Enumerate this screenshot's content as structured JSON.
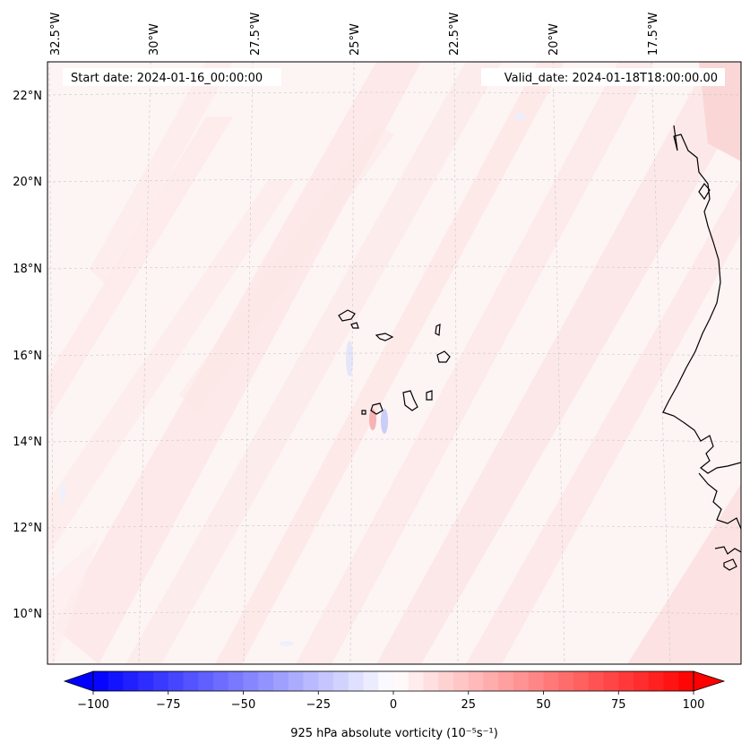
{
  "map": {
    "start_date": "Start date: 2024-01-16_00:00:00",
    "valid_date": "Valid_date: 2024-01-18T18:00:00.00",
    "lon_labels": [
      "32.5°W",
      "30°W",
      "27.5°W",
      "25°W",
      "22.5°W",
      "20°W",
      "17.5°W"
    ],
    "lat_labels": [
      "22°N",
      "20°N",
      "18°N",
      "16°N",
      "14°N",
      "12°N",
      "10°N"
    ],
    "region": "Cape Verde Islands and West African coast",
    "coastline_color": "#000000",
    "gridline_color": "#c8c8c8",
    "background_field_color": "#fdf3f3"
  },
  "colorbar": {
    "label": "925 hPa absolute vorticity (10⁻⁵s⁻¹)",
    "ticks": [
      "−100",
      "−75",
      "−50",
      "−25",
      "0",
      "25",
      "50",
      "75",
      "100"
    ],
    "min": -100,
    "max": 100,
    "step": 5,
    "low_color": "#0000ff",
    "mid_color": "#ffffff",
    "high_color": "#ff0000"
  }
}
